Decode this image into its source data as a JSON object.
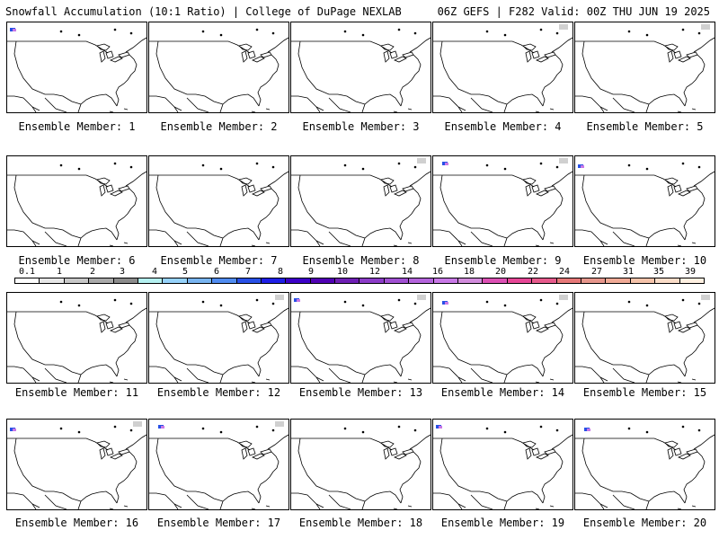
{
  "header": {
    "left": "Snowfall Accumulation (10:1 Ratio) | College of DuPage NEXLAB",
    "right": "06Z GEFS | F282 Valid: 00Z THU JUN 19 2025"
  },
  "members": [
    {
      "label": "Ensemble Member: 1"
    },
    {
      "label": "Ensemble Member: 2"
    },
    {
      "label": "Ensemble Member: 3"
    },
    {
      "label": "Ensemble Member: 4"
    },
    {
      "label": "Ensemble Member: 5"
    },
    {
      "label": "Ensemble Member: 6"
    },
    {
      "label": "Ensemble Member: 7"
    },
    {
      "label": "Ensemble Member: 8"
    },
    {
      "label": "Ensemble Member: 9"
    },
    {
      "label": "Ensemble Member: 10"
    },
    {
      "label": "Ensemble Member: 11"
    },
    {
      "label": "Ensemble Member: 12"
    },
    {
      "label": "Ensemble Member: 13"
    },
    {
      "label": "Ensemble Member: 14"
    },
    {
      "label": "Ensemble Member: 15"
    },
    {
      "label": "Ensemble Member: 16"
    },
    {
      "label": "Ensemble Member: 17"
    },
    {
      "label": "Ensemble Member: 18"
    },
    {
      "label": "Ensemble Member: 19"
    },
    {
      "label": "Ensemble Member: 20"
    }
  ],
  "legend": {
    "ticks": [
      "0.1",
      "1",
      "2",
      "3",
      "4",
      "5",
      "6",
      "7",
      "8",
      "9",
      "10",
      "12",
      "14",
      "16",
      "18",
      "20",
      "22",
      "24",
      "27",
      "31",
      "35",
      "39"
    ],
    "colors": [
      "#ffffff",
      "#e6e6e6",
      "#c8c8c8",
      "#aaaaaa",
      "#8c8c8c",
      "#b4f0f0",
      "#96d2fa",
      "#78b4f0",
      "#508cf0",
      "#2850e6",
      "#1e1ee6",
      "#3c00c8",
      "#5000b4",
      "#6e1eb4",
      "#8c3cc8",
      "#a050d2",
      "#b464dc",
      "#c878e6",
      "#d28cdc",
      "#dc50b4",
      "#e64696",
      "#e65a8c",
      "#e67878",
      "#e6968c",
      "#f0aa96",
      "#f5c3aa",
      "#fadcc8",
      "#fff0e1"
    ]
  }
}
